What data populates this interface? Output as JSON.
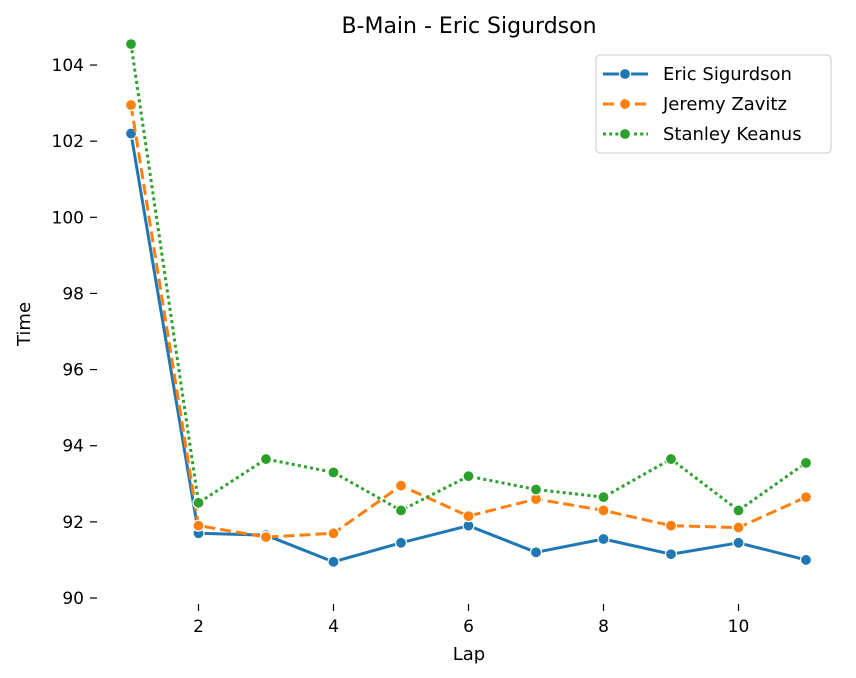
{
  "chart_data": {
    "type": "line",
    "title": "B-Main - Eric Sigurdson",
    "xlabel": "Lap",
    "ylabel": "Time",
    "xlim": [
      0.6,
      11.4
    ],
    "ylim": [
      90,
      104.5
    ],
    "xticks": [
      2,
      4,
      6,
      8,
      10
    ],
    "yticks": [
      90,
      92,
      94,
      96,
      98,
      100,
      102,
      104
    ],
    "legend_position": "top-right",
    "x": [
      1,
      2,
      3,
      4,
      5,
      6,
      7,
      8,
      9,
      10,
      11
    ],
    "series": [
      {
        "name": "Eric Sigurdson",
        "color": "#1f77b4",
        "dash": "solid",
        "values": [
          102.2,
          91.7,
          91.65,
          90.95,
          91.45,
          91.9,
          91.2,
          91.55,
          91.15,
          91.45,
          91.0
        ]
      },
      {
        "name": "Jeremy Zavitz",
        "color": "#ff7f0e",
        "dash": "dashed",
        "values": [
          102.95,
          91.9,
          91.6,
          91.7,
          92.95,
          92.15,
          92.6,
          92.3,
          91.9,
          91.85,
          92.65
        ]
      },
      {
        "name": "Stanley Keanus",
        "color": "#2ca02c",
        "dash": "dotted",
        "values": [
          104.55,
          92.5,
          93.65,
          93.3,
          92.3,
          93.2,
          92.85,
          92.65,
          93.65,
          92.3,
          93.55
        ]
      }
    ]
  }
}
